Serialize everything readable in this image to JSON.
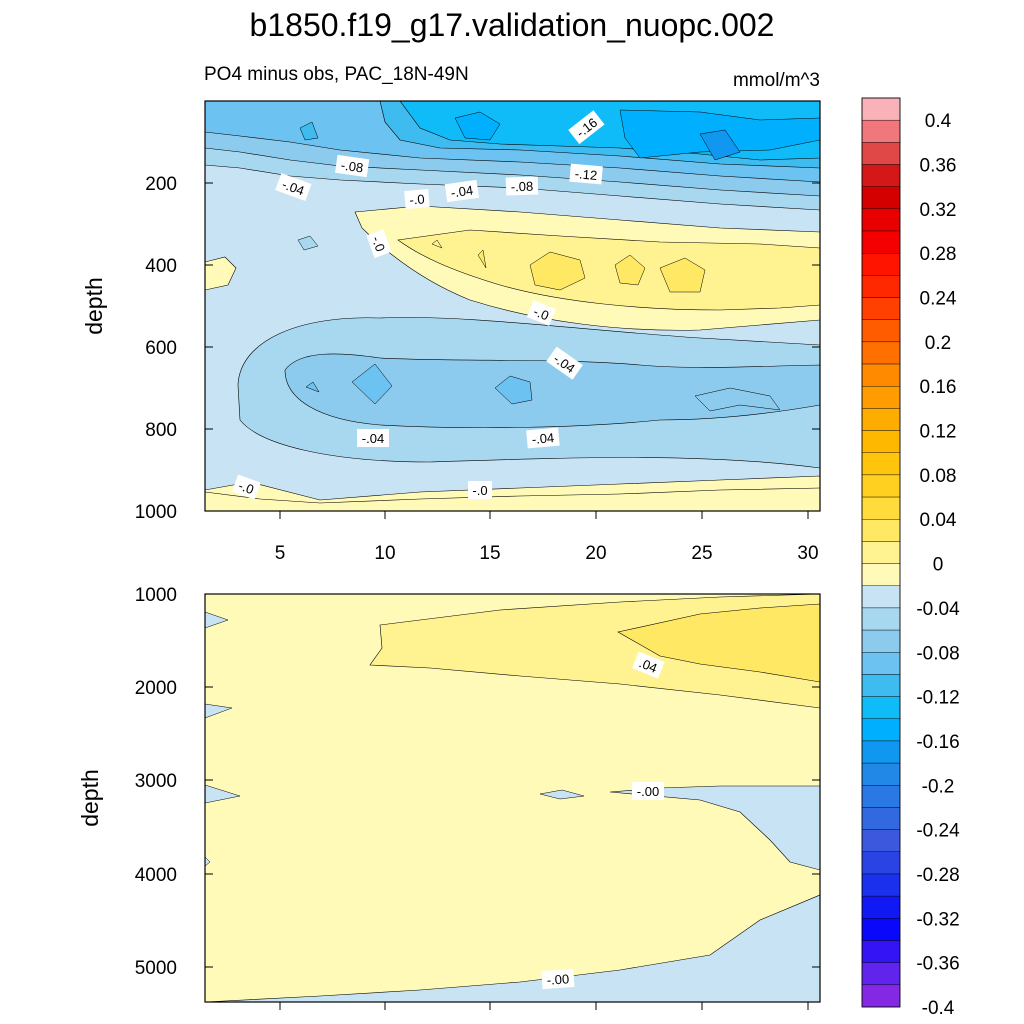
{
  "chart_data": {
    "type": "contour",
    "title": "b1850.f19_g17.validation_nuopc.002",
    "left_subtitle": "PO4 minus obs, PAC_18N-49N",
    "units": "mmol/m^3",
    "panels": [
      {
        "ylabel": "depth",
        "ylim": [
          1000,
          0
        ],
        "yticks": [
          "200",
          "400",
          "600",
          "800",
          "1000"
        ],
        "xlim": [
          1.5,
          30.5
        ],
        "xticks": [
          "5",
          "10",
          "15",
          "20",
          "25",
          "30"
        ],
        "contour_labels": [
          "-.16",
          "-.12",
          "-.08",
          "-.08",
          "-.04",
          "-.04",
          "-.0",
          "-.0",
          "-.0",
          "-.04",
          "-.04",
          "-.04",
          "-.0",
          "-.0"
        ]
      },
      {
        "ylabel": "depth",
        "ylim": [
          1000,
          5400
        ],
        "yticks": [
          "1000",
          "2000",
          "3000",
          "4000",
          "5000"
        ],
        "xlim": [
          1.5,
          30.5
        ],
        "contour_labels": [
          ".04",
          "-.00",
          "-.00"
        ]
      }
    ],
    "colorbar": {
      "tick_labels": [
        "0.4",
        "0.36",
        "0.32",
        "0.28",
        "0.24",
        "0.2",
        "0.16",
        "0.12",
        "0.08",
        "0.04",
        "0",
        "-0.04",
        "-0.08",
        "-0.12",
        "-0.16",
        "-0.2",
        "-0.24",
        "-0.28",
        "-0.32",
        "-0.36",
        "-0.4"
      ],
      "levels_top_to_bottom": [
        0.4,
        0.38,
        0.36,
        0.34,
        0.32,
        0.3,
        0.28,
        0.26,
        0.24,
        0.22,
        0.2,
        0.18,
        0.16,
        0.14,
        0.12,
        0.1,
        0.08,
        0.06,
        0.04,
        0.02,
        0,
        -0.02,
        -0.04,
        -0.06,
        -0.08,
        -0.1,
        -0.12,
        -0.14,
        -0.16,
        -0.18,
        -0.2,
        -0.22,
        -0.24,
        -0.26,
        -0.28,
        -0.3,
        -0.32,
        -0.34,
        -0.36,
        -0.38,
        -0.4
      ],
      "colors_top_to_bottom": [
        "#f9b3b8",
        "#f0787c",
        "#e04848",
        "#d41818",
        "#d40000",
        "#e80000",
        "#f40000",
        "#ff1400",
        "#ff2800",
        "#ff4000",
        "#ff5c00",
        "#ff7000",
        "#ff8a00",
        "#ff9c00",
        "#ffac00",
        "#ffb800",
        "#ffc40c",
        "#ffd020",
        "#ffdc3c",
        "#ffe864",
        "#fff290",
        "#fffab8",
        "#c8e4f4",
        "#a8d8f0",
        "#8ccaee",
        "#6cc2f0",
        "#3ebcf0",
        "#10bcf8",
        "#00b0ff",
        "#1098f0",
        "#2288e8",
        "#2a78e4",
        "#3268e0",
        "#3c58dc",
        "#2a44e4",
        "#1a30ec",
        "#1018f4",
        "#0a08fa",
        "#3414f4",
        "#6024ec",
        "#8428e4"
      ]
    }
  }
}
